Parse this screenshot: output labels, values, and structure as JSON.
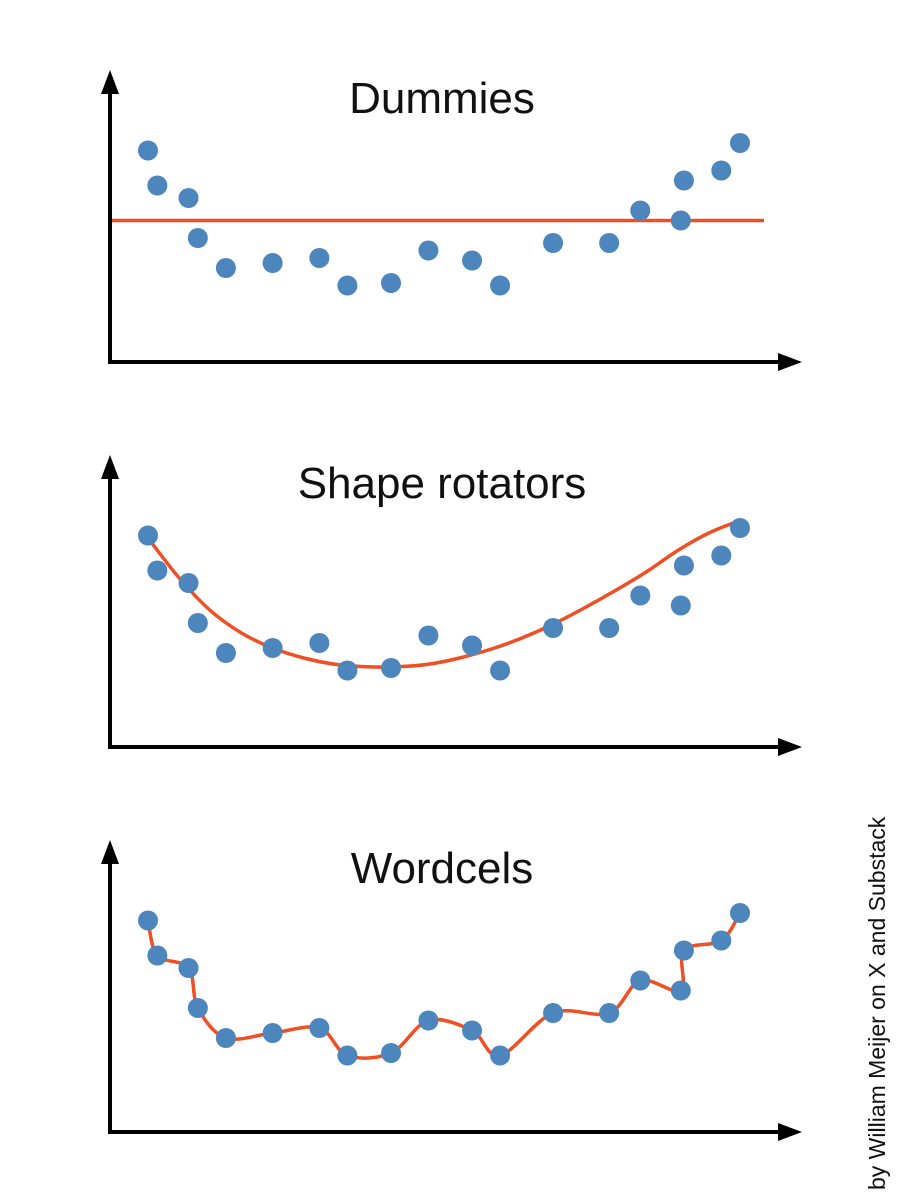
{
  "credit": "by William Meijer on X and Substack",
  "colors": {
    "points": "#4d86bd",
    "fit": "#f04e23",
    "axes": "#000000"
  },
  "chart_data": [
    {
      "type": "scatter",
      "title": "Dummies",
      "fit": "constant",
      "points": [
        {
          "x": 1,
          "y": 9.3
        },
        {
          "x": 1.3,
          "y": 7.9
        },
        {
          "x": 2.3,
          "y": 7.4
        },
        {
          "x": 2.6,
          "y": 5.8
        },
        {
          "x": 3.5,
          "y": 4.6
        },
        {
          "x": 5,
          "y": 4.8
        },
        {
          "x": 6.5,
          "y": 5.0
        },
        {
          "x": 7.4,
          "y": 3.9
        },
        {
          "x": 8.8,
          "y": 4.0
        },
        {
          "x": 10,
          "y": 5.3
        },
        {
          "x": 11.4,
          "y": 4.9
        },
        {
          "x": 12.3,
          "y": 3.9
        },
        {
          "x": 14,
          "y": 5.6
        },
        {
          "x": 15.8,
          "y": 5.6
        },
        {
          "x": 16.8,
          "y": 6.9
        },
        {
          "x": 18.1,
          "y": 6.5
        },
        {
          "x": 18.2,
          "y": 8.1
        },
        {
          "x": 19.4,
          "y": 8.5
        },
        {
          "x": 20,
          "y": 9.6
        }
      ],
      "fit_line": {
        "y": 6.5
      }
    },
    {
      "type": "scatter",
      "title": "Shape rotators",
      "fit": "quadratic",
      "points": [
        {
          "x": 1,
          "y": 9.3
        },
        {
          "x": 1.3,
          "y": 7.9
        },
        {
          "x": 2.3,
          "y": 7.4
        },
        {
          "x": 2.6,
          "y": 5.8
        },
        {
          "x": 3.5,
          "y": 4.6
        },
        {
          "x": 5,
          "y": 4.8
        },
        {
          "x": 6.5,
          "y": 5.0
        },
        {
          "x": 7.4,
          "y": 3.9
        },
        {
          "x": 8.8,
          "y": 4.0
        },
        {
          "x": 10,
          "y": 5.3
        },
        {
          "x": 11.4,
          "y": 4.9
        },
        {
          "x": 12.3,
          "y": 3.9
        },
        {
          "x": 14,
          "y": 5.6
        },
        {
          "x": 15.8,
          "y": 5.6
        },
        {
          "x": 16.8,
          "y": 6.9
        },
        {
          "x": 18.1,
          "y": 6.5
        },
        {
          "x": 18.2,
          "y": 8.1
        },
        {
          "x": 19.4,
          "y": 8.5
        },
        {
          "x": 20,
          "y": 9.6
        }
      ],
      "fit_curve": [
        {
          "x": 1,
          "y": 9.2
        },
        {
          "x": 2,
          "y": 7.6
        },
        {
          "x": 3,
          "y": 6.3
        },
        {
          "x": 4,
          "y": 5.4
        },
        {
          "x": 5,
          "y": 4.8
        },
        {
          "x": 6,
          "y": 4.4
        },
        {
          "x": 7,
          "y": 4.15
        },
        {
          "x": 8,
          "y": 4.05
        },
        {
          "x": 9,
          "y": 4.05
        },
        {
          "x": 10,
          "y": 4.15
        },
        {
          "x": 11,
          "y": 4.4
        },
        {
          "x": 12,
          "y": 4.75
        },
        {
          "x": 13,
          "y": 5.2
        },
        {
          "x": 14,
          "y": 5.75
        },
        {
          "x": 15,
          "y": 6.4
        },
        {
          "x": 16,
          "y": 7.1
        },
        {
          "x": 17,
          "y": 7.85
        },
        {
          "x": 18,
          "y": 8.7
        },
        {
          "x": 19,
          "y": 9.4
        },
        {
          "x": 20,
          "y": 9.9
        }
      ]
    },
    {
      "type": "scatter",
      "title": "Wordcels",
      "fit": "overfit",
      "points": [
        {
          "x": 1,
          "y": 9.3
        },
        {
          "x": 1.3,
          "y": 7.9
        },
        {
          "x": 2.3,
          "y": 7.4
        },
        {
          "x": 2.6,
          "y": 5.8
        },
        {
          "x": 3.5,
          "y": 4.6
        },
        {
          "x": 5,
          "y": 4.8
        },
        {
          "x": 6.5,
          "y": 5.0
        },
        {
          "x": 7.4,
          "y": 3.9
        },
        {
          "x": 8.8,
          "y": 4.0
        },
        {
          "x": 10,
          "y": 5.3
        },
        {
          "x": 11.4,
          "y": 4.9
        },
        {
          "x": 12.3,
          "y": 3.9
        },
        {
          "x": 14,
          "y": 5.6
        },
        {
          "x": 15.8,
          "y": 5.6
        },
        {
          "x": 16.8,
          "y": 6.9
        },
        {
          "x": 18.1,
          "y": 6.5
        },
        {
          "x": 18.2,
          "y": 8.1
        },
        {
          "x": 19.4,
          "y": 8.5
        },
        {
          "x": 20,
          "y": 9.6
        }
      ],
      "fit_curve": "interpolates every point"
    }
  ]
}
